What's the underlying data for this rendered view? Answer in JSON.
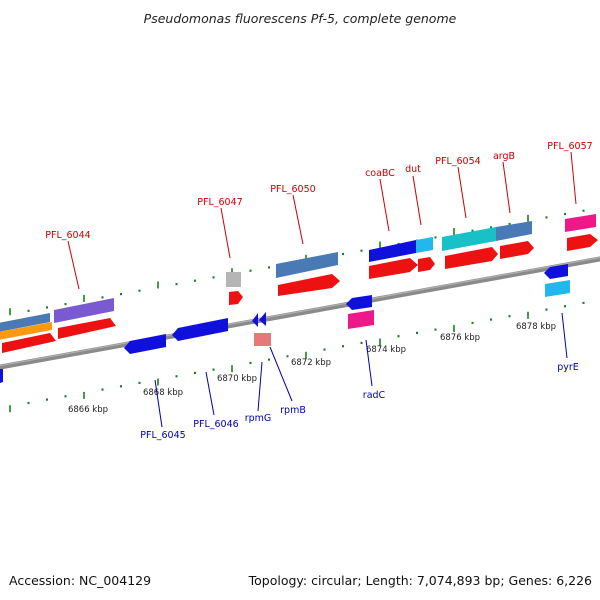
{
  "title": "Pseudomonas fluorescens Pf-5, complete genome",
  "footer": {
    "accession": "Accession: NC_004129",
    "topology": "Topology: circular; Length: 7,074,893 bp; Genes: 6,226"
  },
  "kbp_labels": [
    "6866 kbp",
    "6868 kbp",
    "6870 kbp",
    "6872 kbp",
    "6874 kbp",
    "6876 kbp",
    "6878 kbp"
  ],
  "genes_top": [
    "PFL_6044",
    "PFL_6047",
    "PFL_6050",
    "coaBC",
    "dut",
    "PFL_6054",
    "argB",
    "PFL_6057"
  ],
  "genes_bottom": [
    "PFL_6045",
    "PFL_6046",
    "rpmG",
    "rpmB",
    "radC",
    "pyrE"
  ],
  "colors": {
    "top_label": "#cc0000",
    "bottom_label": "#0000aa",
    "backbone": "#8a8a8a",
    "tick": "#1e7d1e",
    "cds": "#ee1111",
    "blue": "#1010dd"
  }
}
